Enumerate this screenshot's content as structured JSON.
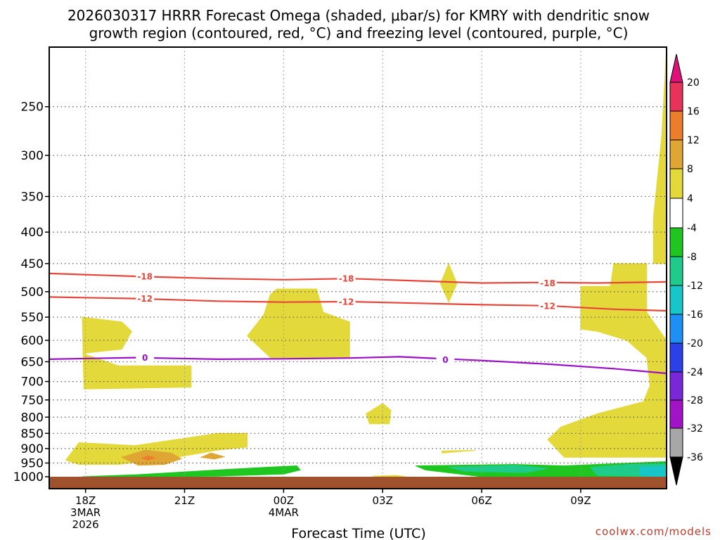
{
  "chart_data": {
    "type": "heatmap",
    "title_lines": [
      "2026030317 HRRR Forecast Omega (shaded, μbar/s) for KMRY with dendritic snow",
      "growth region (contoured, red, °C) and freezing level (contoured, purple, °C)"
    ],
    "xlabel": "Forecast Time (UTC)",
    "credit": "coolwx.com/models",
    "x_axis": {
      "range_hours": [
        -1.1,
        17.6
      ],
      "ticks": [
        {
          "h": 0,
          "lines": [
            "18Z",
            "3MAR",
            "2026"
          ]
        },
        {
          "h": 3,
          "lines": [
            "21Z"
          ]
        },
        {
          "h": 6,
          "lines": [
            "00Z",
            "4MAR"
          ]
        },
        {
          "h": 9,
          "lines": [
            "03Z"
          ]
        },
        {
          "h": 12,
          "lines": [
            "06Z"
          ]
        },
        {
          "h": 15,
          "lines": [
            "09Z"
          ]
        }
      ]
    },
    "y_axis": {
      "label_values": [
        250,
        300,
        350,
        400,
        450,
        500,
        550,
        600,
        650,
        700,
        750,
        800,
        850,
        900,
        950,
        1000
      ],
      "grid_values": [
        250,
        300,
        350,
        400,
        450,
        500,
        550,
        600,
        650,
        700,
        750,
        800,
        850,
        900,
        950
      ],
      "top_pressure": 200,
      "bottom_pressure": 1000
    },
    "colorbar": {
      "labels": [
        "20",
        "16",
        "12",
        "8",
        "4",
        "-4",
        "-8",
        "-12",
        "-16",
        "-20",
        "-24",
        "-28",
        "-32",
        "-36"
      ],
      "segment_colors": [
        "#e8325a",
        "#ec7d2b",
        "#e0a633",
        "#e3d93a",
        "#ffffff",
        "#1fc61f",
        "#1ecb8a",
        "#16c6c9",
        "#1e8ff5",
        "#2b40e6",
        "#7828d8",
        "#a213c6",
        "#a6a6a6"
      ],
      "top_arrow_color": "#e0107a",
      "bottom_arrow_color": "#000000"
    },
    "shaded_regions": [
      {
        "name": "yellow-upper-right-1",
        "level": 4,
        "color": "#e3d93a",
        "points": [
          [
            17.6,
            200
          ],
          [
            17.6,
            450
          ],
          [
            17.2,
            450
          ],
          [
            17.2,
            380
          ],
          [
            17.45,
            280
          ]
        ]
      },
      {
        "name": "yellow-right-block",
        "level": 4,
        "color": "#e3d93a",
        "points": [
          [
            15.0,
            490
          ],
          [
            15.9,
            490
          ],
          [
            16.0,
            450
          ],
          [
            17.0,
            450
          ],
          [
            17.0,
            540
          ],
          [
            17.5,
            590
          ],
          [
            17.6,
            600
          ],
          [
            17.6,
            930
          ],
          [
            14.5,
            930
          ],
          [
            14.0,
            870
          ],
          [
            14.4,
            830
          ],
          [
            15.5,
            790
          ],
          [
            16.9,
            755
          ],
          [
            17.1,
            710
          ],
          [
            17.0,
            640
          ],
          [
            16.4,
            600
          ],
          [
            15.5,
            580
          ],
          [
            15.0,
            575
          ]
        ]
      },
      {
        "name": "yellow-left-block",
        "level": 4,
        "color": "#e3d93a",
        "points": [
          [
            -0.1,
            550
          ],
          [
            1.1,
            560
          ],
          [
            1.4,
            580
          ],
          [
            1.1,
            620
          ],
          [
            -0.1,
            630
          ],
          [
            1.0,
            660
          ],
          [
            3.2,
            660
          ],
          [
            3.2,
            715
          ],
          [
            -0.05,
            720
          ]
        ]
      },
      {
        "name": "yellow-middle-block",
        "level": 4,
        "color": "#e3d93a",
        "points": [
          [
            5.6,
            505
          ],
          [
            5.8,
            495
          ],
          [
            7.0,
            495
          ],
          [
            7.2,
            540
          ],
          [
            8.0,
            560
          ],
          [
            8.0,
            640
          ],
          [
            5.6,
            640
          ],
          [
            4.9,
            590
          ],
          [
            5.4,
            545
          ]
        ]
      },
      {
        "name": "yellow-small-diamond",
        "level": 4,
        "color": "#e3d93a",
        "points": [
          [
            11.0,
            450
          ],
          [
            11.25,
            485
          ],
          [
            11.0,
            520
          ],
          [
            10.75,
            485
          ]
        ]
      },
      {
        "name": "yellow-small-bubble",
        "level": 4,
        "color": "#e3d93a",
        "points": [
          [
            9.0,
            760
          ],
          [
            9.25,
            780
          ],
          [
            9.2,
            820
          ],
          [
            8.6,
            820
          ],
          [
            8.5,
            790
          ]
        ]
      },
      {
        "name": "yellow-low-left-band",
        "level": 4,
        "color": "#e3d93a",
        "points": [
          [
            -0.6,
            940
          ],
          [
            -0.2,
            880
          ],
          [
            1.5,
            890
          ],
          [
            4.0,
            850
          ],
          [
            4.9,
            850
          ],
          [
            4.9,
            895
          ],
          [
            4.0,
            905
          ],
          [
            2.5,
            935
          ],
          [
            1.0,
            955
          ],
          [
            -0.2,
            955
          ]
        ]
      },
      {
        "name": "yellow-tiny-1",
        "level": 4,
        "color": "#e3d93a",
        "points": [
          [
            10.8,
            908
          ],
          [
            11.8,
            906
          ],
          [
            10.8,
            915
          ]
        ]
      },
      {
        "name": "yellow-tiny-2",
        "level": 4,
        "color": "#e3d93a",
        "points": [
          [
            8.7,
            998
          ],
          [
            9.4,
            995
          ],
          [
            9.7,
            1000
          ]
        ]
      },
      {
        "name": "orange-lower-blob",
        "level": 8,
        "color": "#e0a633",
        "points": [
          [
            1.1,
            930
          ],
          [
            1.8,
            905
          ],
          [
            2.6,
            915
          ],
          [
            2.9,
            935
          ],
          [
            2.4,
            955
          ],
          [
            1.6,
            958
          ]
        ]
      },
      {
        "name": "orange-small-blob",
        "level": 8,
        "color": "#e0a633",
        "points": [
          [
            3.5,
            930
          ],
          [
            3.8,
            915
          ],
          [
            4.2,
            928
          ],
          [
            3.9,
            936
          ]
        ]
      },
      {
        "name": "red-center-dot",
        "level": 12,
        "color": "#ec7d2b",
        "points": [
          [
            1.7,
            932
          ],
          [
            1.9,
            925
          ],
          [
            2.1,
            932
          ],
          [
            1.9,
            940
          ]
        ]
      },
      {
        "name": "green-lower-left-band",
        "level": -4,
        "color": "#1fc61f",
        "points": [
          [
            -0.1,
            1000
          ],
          [
            1.5,
            993
          ],
          [
            4.0,
            975
          ],
          [
            5.5,
            965
          ],
          [
            6.4,
            960
          ],
          [
            6.5,
            975
          ],
          [
            6.0,
            990
          ],
          [
            4.0,
            998
          ],
          [
            2.0,
            1000
          ]
        ]
      },
      {
        "name": "green-lower-right-band",
        "level": -4,
        "color": "#1fc61f",
        "points": [
          [
            10.0,
            960
          ],
          [
            13.0,
            955
          ],
          [
            14.5,
            960
          ],
          [
            15.5,
            955
          ],
          [
            17.6,
            945
          ],
          [
            17.6,
            1000
          ],
          [
            12.0,
            1000
          ],
          [
            10.3,
            975
          ]
        ]
      },
      {
        "name": "teal-lower-right",
        "level": -8,
        "color": "#1ecb8a",
        "points": [
          [
            11.0,
            965
          ],
          [
            13.0,
            958
          ],
          [
            14.0,
            970
          ],
          [
            13.3,
            985
          ],
          [
            11.5,
            980
          ]
        ]
      },
      {
        "name": "teal-lower-right-2",
        "level": -8,
        "color": "#1ecb8a",
        "points": [
          [
            15.3,
            965
          ],
          [
            16.5,
            955
          ],
          [
            17.6,
            952
          ],
          [
            17.6,
            1000
          ],
          [
            15.5,
            995
          ]
        ]
      },
      {
        "name": "cyan-lower-right",
        "level": -12,
        "color": "#16c6c9",
        "points": [
          [
            16.8,
            965
          ],
          [
            17.6,
            962
          ],
          [
            17.6,
            1000
          ],
          [
            16.8,
            995
          ]
        ]
      }
    ],
    "contours": [
      {
        "name": "dgz-minus-18",
        "value": -18,
        "color": "#e8453a",
        "points": [
          [
            -1.1,
            467
          ],
          [
            1.5,
            472
          ],
          [
            4.0,
            476
          ],
          [
            6.0,
            478
          ],
          [
            8.0,
            476
          ],
          [
            10.0,
            480
          ],
          [
            12.0,
            484
          ],
          [
            14.0,
            483
          ],
          [
            15.5,
            484
          ],
          [
            17.6,
            482
          ]
        ],
        "labels": [
          {
            "h": 1.8,
            "p": 472
          },
          {
            "h": 7.9,
            "p": 476
          },
          {
            "h": 14.0,
            "p": 484
          }
        ]
      },
      {
        "name": "dgz-minus-12",
        "value": -12,
        "color": "#e8453a",
        "points": [
          [
            -1.1,
            510
          ],
          [
            1.5,
            513
          ],
          [
            4.0,
            518
          ],
          [
            6.0,
            520
          ],
          [
            8.0,
            519
          ],
          [
            10.0,
            522
          ],
          [
            12.0,
            525
          ],
          [
            14.0,
            527
          ],
          [
            16.0,
            534
          ],
          [
            17.6,
            537
          ]
        ],
        "labels": [
          {
            "h": 1.8,
            "p": 513
          },
          {
            "h": 7.9,
            "p": 519
          },
          {
            "h": 14.0,
            "p": 527
          }
        ]
      },
      {
        "name": "freezing-level-0",
        "value": 0,
        "color": "#9b0fc6",
        "points": [
          [
            -1.1,
            644
          ],
          [
            1.5,
            640
          ],
          [
            4.0,
            644
          ],
          [
            6.0,
            643
          ],
          [
            8.0,
            641
          ],
          [
            9.5,
            638
          ],
          [
            12.0,
            647
          ],
          [
            14.0,
            656
          ],
          [
            16.0,
            667
          ],
          [
            17.6,
            679
          ]
        ],
        "labels": [
          {
            "h": 1.8,
            "p": 640
          },
          {
            "h": 10.9,
            "p": 645
          }
        ]
      }
    ],
    "ground": {
      "color": "#a0522d",
      "from_pressure": 1000
    }
  }
}
